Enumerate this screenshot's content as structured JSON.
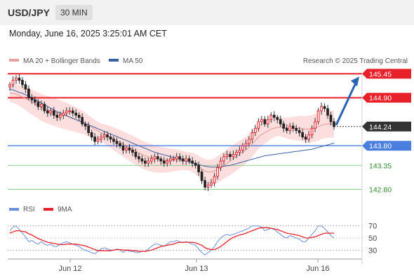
{
  "header": {
    "symbol": "USD/JPY",
    "timeframe": "30 MIN"
  },
  "timestamp": "Monday, June 16, 2025 3:25:01 AM CET",
  "legend": {
    "ma20_bb": "MA 20 + Bollinger Bands",
    "ma50": "MA 50",
    "credit": "Research © 2025 Trading Central"
  },
  "rsi_legend": {
    "rsi": "RSI",
    "ma": "9MA"
  },
  "colors": {
    "resistance": "#e8202a",
    "support": "#4a7fe0",
    "level_green": "#8fc98f",
    "up_candle": "#e8202a",
    "ma50": "#3a5fa0",
    "ma20": "#e8a0a0",
    "bands_fill": "#fcdede",
    "current": "#333333",
    "arrow": "#2a62b4",
    "rsi": "#6b8fe0",
    "rsi_ma": "#e8202a"
  },
  "chart_data": [
    {
      "type": "candlestick",
      "title": "USD/JPY 30 MIN",
      "x_ticks": [
        "Jun 12",
        "Jun 13",
        "Jun 16"
      ],
      "ylim": [
        142.6,
        145.6
      ],
      "levels": [
        {
          "value": 145.45,
          "label": "145.45",
          "kind": "resistance"
        },
        {
          "value": 144.9,
          "label": "144.90",
          "kind": "resistance"
        },
        {
          "value": 144.24,
          "label": "144.24",
          "kind": "current"
        },
        {
          "value": 143.8,
          "label": "143.80",
          "kind": "support"
        },
        {
          "value": 143.35,
          "label": "143.35",
          "kind": "level"
        },
        {
          "value": 142.8,
          "label": "142.80",
          "kind": "level"
        }
      ],
      "close": [
        145.2,
        145.3,
        145.35,
        145.3,
        145.2,
        145.1,
        144.9,
        144.85,
        144.8,
        144.7,
        144.75,
        144.6,
        144.55,
        144.6,
        144.5,
        144.45,
        144.5,
        144.55,
        144.6,
        144.6,
        144.55,
        144.5,
        144.45,
        144.3,
        144.25,
        144.1,
        144.0,
        143.9,
        143.95,
        144.0,
        144.05,
        144.0,
        143.95,
        143.9,
        143.85,
        143.8,
        143.7,
        143.75,
        143.7,
        143.65,
        143.55,
        143.5,
        143.45,
        143.4,
        143.45,
        143.5,
        143.55,
        143.5,
        143.45,
        143.4,
        143.45,
        143.5,
        143.5,
        143.55,
        143.5,
        143.45,
        143.5,
        143.45,
        143.4,
        143.35,
        143.2,
        143.0,
        142.85,
        142.9,
        142.95,
        143.1,
        143.3,
        143.45,
        143.55,
        143.6,
        143.55,
        143.6,
        143.65,
        143.7,
        143.8,
        143.85,
        143.95,
        144.1,
        144.2,
        144.35,
        144.4,
        144.3,
        144.4,
        144.5,
        144.45,
        144.4,
        144.3,
        144.2,
        144.15,
        144.25,
        144.2,
        144.15,
        144.1,
        144.0,
        143.95,
        144.05,
        144.2,
        144.35,
        144.6,
        144.7,
        144.65,
        144.5,
        144.35,
        144.24
      ],
      "ma20": [
        145.0,
        145.0,
        144.98,
        144.95,
        144.92,
        144.88,
        144.84,
        144.8,
        144.76,
        144.72,
        144.68,
        144.65,
        144.62,
        144.6,
        144.58,
        144.55,
        144.52,
        144.5,
        144.48,
        144.45,
        144.42,
        144.4,
        144.37,
        144.34,
        144.3,
        144.26,
        144.22,
        144.18,
        144.14,
        144.1,
        144.07,
        144.04,
        144.0,
        143.96,
        143.92,
        143.88,
        143.84,
        143.8,
        143.76,
        143.72,
        143.68,
        143.64,
        143.6,
        143.57,
        143.54,
        143.52,
        143.5,
        143.49,
        143.48,
        143.47,
        143.47,
        143.47,
        143.47,
        143.47,
        143.47,
        143.46,
        143.45,
        143.44,
        143.42,
        143.38,
        143.33,
        143.27,
        143.22,
        143.2,
        143.2,
        143.22,
        143.26,
        143.3,
        143.35,
        143.4,
        143.45,
        143.5,
        143.55,
        143.6,
        143.65,
        143.7,
        143.77,
        143.84,
        143.92,
        144.0,
        144.06,
        144.1,
        144.14,
        144.18,
        144.2,
        144.22,
        144.23,
        144.22,
        144.21,
        144.2,
        144.2,
        144.2,
        144.2,
        144.19,
        144.18,
        144.18,
        144.19,
        144.21,
        144.24,
        144.27,
        144.29,
        144.3,
        144.3,
        144.3
      ],
      "ma50": [
        145.1,
        145.08,
        145.05,
        145.02,
        145.0,
        144.97,
        144.94,
        144.9,
        144.86,
        144.82,
        144.78,
        144.74,
        144.7,
        144.66,
        144.62,
        144.58,
        144.55,
        144.52,
        144.49,
        144.46,
        144.43,
        144.4,
        144.37,
        144.34,
        144.31,
        144.28,
        144.25,
        144.22,
        144.19,
        144.16,
        144.13,
        144.1,
        144.07,
        144.04,
        144.01,
        143.98,
        143.95,
        143.92,
        143.89,
        143.86,
        143.83,
        143.8,
        143.77,
        143.74,
        143.71,
        143.68,
        143.65,
        143.63,
        143.61,
        143.59,
        143.57,
        143.55,
        143.53,
        143.51,
        143.49,
        143.47,
        143.45,
        143.43,
        143.41,
        143.39,
        143.37,
        143.35,
        143.33,
        143.32,
        143.31,
        143.31,
        143.31,
        143.32,
        143.33,
        143.34,
        143.35,
        143.37,
        143.39,
        143.41,
        143.43,
        143.45,
        143.47,
        143.49,
        143.51,
        143.53,
        143.55,
        143.57,
        143.58,
        143.59,
        143.6,
        143.61,
        143.62,
        143.63,
        143.64,
        143.65,
        143.66,
        143.67,
        143.68,
        143.69,
        143.7,
        143.71,
        143.72,
        143.74,
        143.76,
        143.78,
        143.8,
        143.82,
        143.84,
        143.86
      ]
    },
    {
      "type": "line",
      "title": "RSI",
      "y_ticks": [
        70,
        50,
        30
      ],
      "ylim": [
        20,
        80
      ],
      "series": [
        {
          "name": "RSI",
          "values": [
            62,
            68,
            70,
            64,
            58,
            52,
            44,
            46,
            42,
            40,
            44,
            40,
            38,
            40,
            36,
            36,
            40,
            42,
            44,
            42,
            40,
            38,
            36,
            32,
            30,
            28,
            26,
            24,
            28,
            32,
            34,
            32,
            30,
            30,
            32,
            30,
            26,
            30,
            28,
            28,
            26,
            26,
            28,
            28,
            32,
            36,
            40,
            40,
            38,
            36,
            40,
            44,
            44,
            46,
            44,
            42,
            44,
            42,
            40,
            38,
            32,
            26,
            22,
            26,
            30,
            36,
            44,
            50,
            54,
            56,
            54,
            56,
            58,
            60,
            62,
            64,
            66,
            70,
            70,
            70,
            68,
            62,
            64,
            66,
            64,
            60,
            56,
            52,
            50,
            54,
            52,
            50,
            48,
            44,
            44,
            50,
            56,
            62,
            70,
            70,
            66,
            60,
            54,
            50
          ]
        },
        {
          "name": "9MA",
          "values": [
            58,
            60,
            62,
            62,
            61,
            60,
            57,
            55,
            52,
            49,
            47,
            45,
            43,
            42,
            41,
            40,
            39,
            39,
            40,
            40,
            40,
            40,
            39,
            38,
            37,
            35,
            33,
            31,
            29,
            29,
            29,
            29,
            29,
            30,
            31,
            31,
            30,
            30,
            30,
            29,
            29,
            28,
            28,
            28,
            29,
            30,
            32,
            34,
            36,
            37,
            38,
            39,
            40,
            42,
            43,
            43,
            43,
            43,
            43,
            42,
            40,
            38,
            34,
            32,
            31,
            31,
            33,
            36,
            40,
            44,
            48,
            51,
            53,
            55,
            56,
            58,
            60,
            62,
            64,
            66,
            67,
            67,
            67,
            66,
            65,
            64,
            62,
            60,
            58,
            57,
            56,
            55,
            54,
            52,
            50,
            50,
            51,
            52,
            54,
            56,
            58,
            58,
            58,
            58
          ]
        }
      ]
    }
  ]
}
